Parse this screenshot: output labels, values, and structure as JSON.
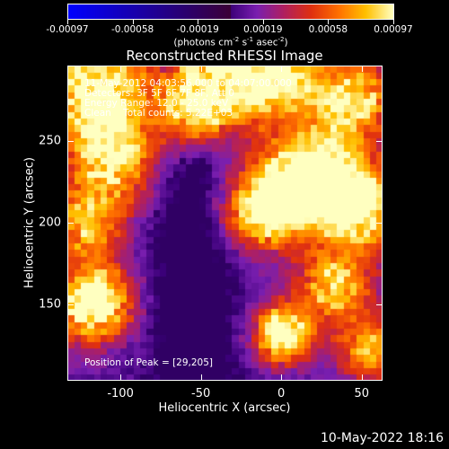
{
  "colorbar": {
    "ticks": [
      "-0.00097",
      "-0.00058",
      "-0.00019",
      "0.00019",
      "0.00058",
      "0.00097"
    ],
    "units_prefix": "(photons cm",
    "units_exp1": "-2",
    "units_mid": " s",
    "units_exp2": "-1",
    "units_mid2": " asec",
    "units_exp3": "-2",
    "units_suffix": ")"
  },
  "title": "Reconstructed RHESSI Image",
  "info": {
    "line1": "11-May-2012 04:03:56.000 to 04:07:00.000",
    "line2": "Detectors: 3F 5F 6F 7F 8F, Att 0",
    "line3": "Energy Range: 12.0 - 25.0 keV",
    "line4": "Clean    Total counts: 5.22E+03",
    "peak": "Position of Peak = [29,205]"
  },
  "axes": {
    "xlabel": "Heliocentric X (arcsec)",
    "ylabel": "Heliocentric Y (arcsec)",
    "xticks": [
      "-100",
      "-50",
      "0",
      "50"
    ],
    "yticks": [
      "250",
      "200",
      "150"
    ],
    "xlim": [
      -133,
      63
    ],
    "ylim": [
      103,
      296
    ]
  },
  "timestamp": "10-May-2022 18:16",
  "colors": {
    "cmap": [
      "#000000",
      "#3a0078",
      "#7a1fb0",
      "#b02060",
      "#e03010",
      "#ff7000",
      "#ffc000",
      "#ffffc0"
    ]
  }
}
